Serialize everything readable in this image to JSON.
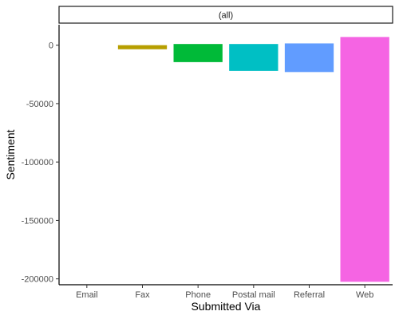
{
  "chart_data": {
    "type": "bar",
    "facet_label": "(all)",
    "categories": [
      "Email",
      "Fax",
      "Phone",
      "Postal mail",
      "Referral",
      "Web"
    ],
    "series": [
      {
        "values": [
          0,
          -3500,
          -14500,
          -22000,
          -23000,
          -202500
        ],
        "tops": [
          0,
          0,
          1000,
          1000,
          1500,
          7000
        ],
        "colors": [
          "#F8766D",
          "#B79F00",
          "#00BA38",
          "#00BFC4",
          "#619CFF",
          "#F564E3"
        ]
      }
    ],
    "y_ticks": [
      0,
      -50000,
      -100000,
      -150000,
      -200000
    ],
    "y_tick_labels": [
      "0",
      "-50000",
      "-100000",
      "-150000",
      "-200000"
    ],
    "ylim": [
      -205000,
      17500
    ],
    "xlabel": "Submitted Via",
    "ylabel": "Sentiment",
    "grid": false,
    "legend": "none"
  }
}
